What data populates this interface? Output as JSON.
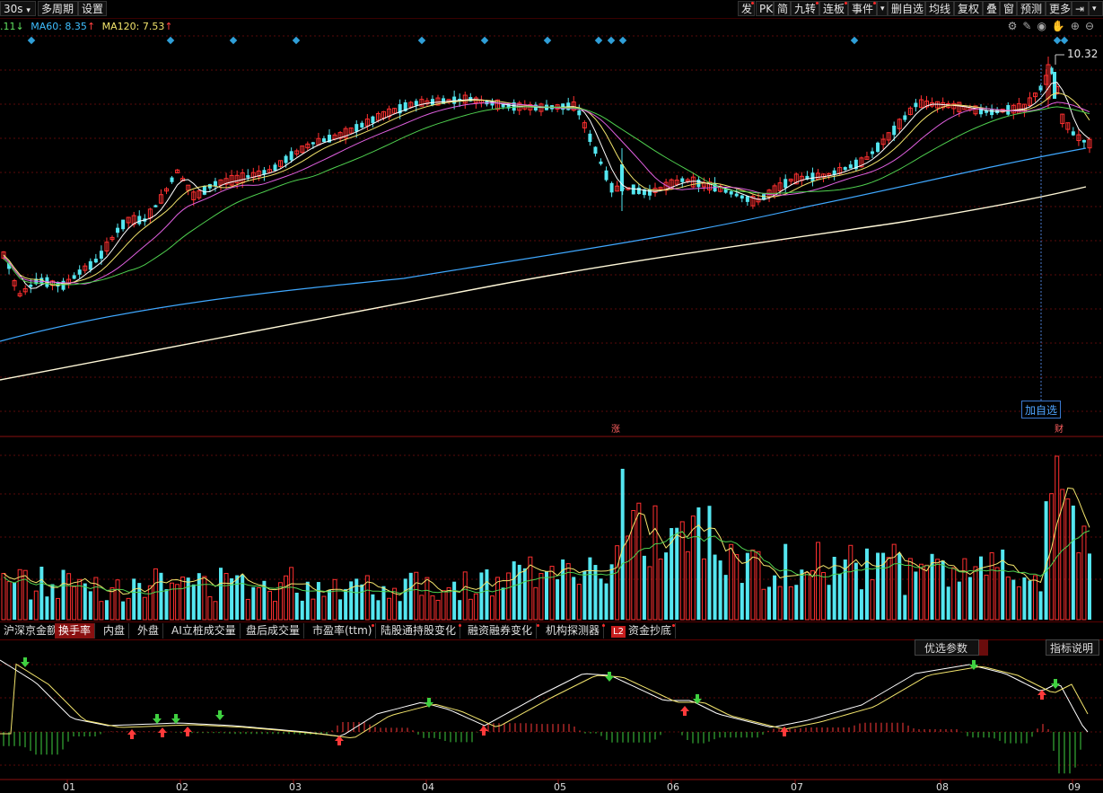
{
  "toolbar": {
    "left": [
      "30s",
      "多周期",
      "设置"
    ],
    "right": [
      "发",
      "PK",
      "简",
      "九转",
      "连板",
      "事件",
      "",
      "删自选",
      "均线",
      "复权",
      "叠",
      "窗",
      "预测",
      "更多",
      "⇥",
      "▾"
    ]
  },
  "ma_legend": {
    "cut": ".11",
    "ma60_label": "MA60: 8.35",
    "ma120_label": "MA120: 7.53"
  },
  "price_chart": {
    "high_label": "10.32",
    "add_watch_label": "加自选",
    "badge_zhang": "涨",
    "badge_caibao": "财"
  },
  "tabs": [
    "沪深京金额",
    "换手率",
    "内盘",
    "外盘",
    "AI立桩成交量",
    "盘后成交量",
    "市盈率(ttm)",
    "陆股通持股变化",
    "融资融券变化",
    "机构探测器",
    "资金抄底"
  ],
  "tab_l2": "L2",
  "active_tab_index": 1,
  "indicator": {
    "params_button": "优选参数",
    "help_button": "指标说明"
  },
  "x_axis_months": [
    "01",
    "02",
    "03",
    "04",
    "05",
    "06",
    "07",
    "08",
    "09"
  ],
  "colors": {
    "up": "#ff3030",
    "down": "#54e6f0",
    "ma_white": "#ffffff",
    "ma_yellow": "#f2e46c",
    "ma_magenta": "#e060e0",
    "ma_green": "#4fd04f",
    "ma_blue": "#3fa8ff",
    "ma_long": "#fff8d8"
  }
}
